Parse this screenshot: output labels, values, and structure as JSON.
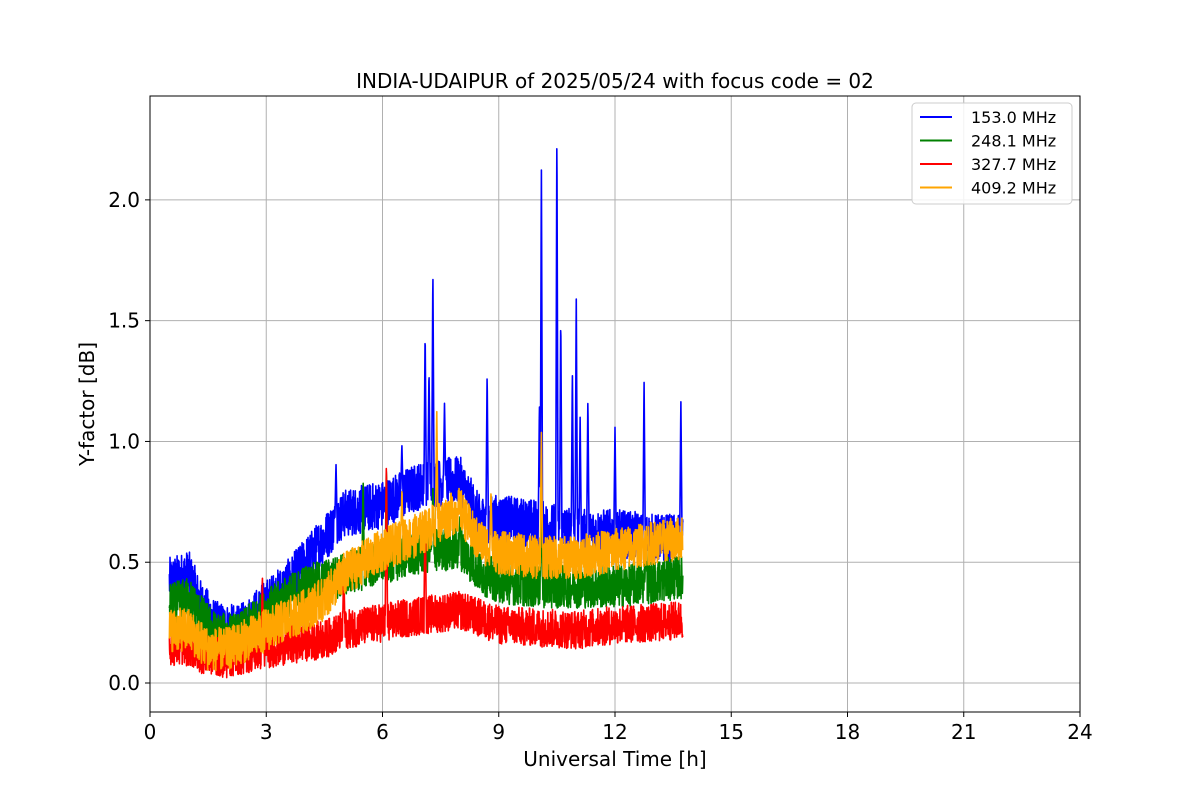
{
  "chart_data": {
    "type": "line",
    "title": "INDIA-UDAIPUR of 2025/05/24 with focus code = 02",
    "xlabel": "Universal Time [h]",
    "ylabel": "Y-factor [dB]",
    "xlim": [
      0,
      24
    ],
    "ylim": [
      -0.12,
      2.43
    ],
    "xticks": [
      0,
      3,
      6,
      9,
      12,
      15,
      18,
      21,
      24
    ],
    "xtick_labels": [
      "0",
      "3",
      "6",
      "9",
      "12",
      "15",
      "18",
      "21",
      "24"
    ],
    "yticks": [
      0.0,
      0.5,
      1.0,
      1.5,
      2.0
    ],
    "ytick_labels": [
      "0.0",
      "0.5",
      "1.0",
      "1.5",
      "2.0"
    ],
    "grid": true,
    "legend_position": "top-right",
    "data_range_hours": [
      0.5,
      13.75
    ],
    "series": [
      {
        "name": "153.0 MHz",
        "color": "#0000ff",
        "noise": 0.1,
        "baseline": [
          [
            0.5,
            0.42
          ],
          [
            1.0,
            0.45
          ],
          [
            1.3,
            0.33
          ],
          [
            1.7,
            0.24
          ],
          [
            2.3,
            0.22
          ],
          [
            3.0,
            0.33
          ],
          [
            3.5,
            0.4
          ],
          [
            4.0,
            0.5
          ],
          [
            4.5,
            0.6
          ],
          [
            5.0,
            0.7
          ],
          [
            6.0,
            0.74
          ],
          [
            7.0,
            0.82
          ],
          [
            8.0,
            0.84
          ],
          [
            8.5,
            0.68
          ],
          [
            9.0,
            0.68
          ],
          [
            10.0,
            0.66
          ],
          [
            11.0,
            0.62
          ],
          [
            12.0,
            0.62
          ],
          [
            13.0,
            0.6
          ],
          [
            13.75,
            0.6
          ]
        ],
        "spikes": [
          [
            7.1,
            1.46
          ],
          [
            7.3,
            1.72
          ],
          [
            7.2,
            1.3
          ],
          [
            7.6,
            1.16
          ],
          [
            8.7,
            1.29
          ],
          [
            10.05,
            1.16
          ],
          [
            10.1,
            2.16
          ],
          [
            10.5,
            2.31
          ],
          [
            10.6,
            1.53
          ],
          [
            10.9,
            1.3
          ],
          [
            11.0,
            1.61
          ],
          [
            11.1,
            1.1
          ],
          [
            11.3,
            1.18
          ],
          [
            12.0,
            1.06
          ],
          [
            12.75,
            1.26
          ],
          [
            13.7,
            1.17
          ],
          [
            6.5,
            0.99
          ],
          [
            4.8,
            0.91
          ]
        ]
      },
      {
        "name": "248.1 MHz",
        "color": "#008000",
        "noise": 0.09,
        "baseline": [
          [
            0.5,
            0.32
          ],
          [
            1.0,
            0.35
          ],
          [
            1.3,
            0.28
          ],
          [
            1.7,
            0.2
          ],
          [
            2.3,
            0.2
          ],
          [
            3.0,
            0.3
          ],
          [
            3.5,
            0.35
          ],
          [
            4.0,
            0.4
          ],
          [
            4.5,
            0.42
          ],
          [
            5.0,
            0.45
          ],
          [
            6.0,
            0.5
          ],
          [
            7.0,
            0.54
          ],
          [
            8.0,
            0.56
          ],
          [
            8.5,
            0.46
          ],
          [
            9.0,
            0.42
          ],
          [
            10.0,
            0.4
          ],
          [
            11.0,
            0.4
          ],
          [
            12.0,
            0.4
          ],
          [
            13.0,
            0.42
          ],
          [
            13.75,
            0.44
          ]
        ],
        "spikes": [
          [
            5.5,
            0.85
          ],
          [
            6.1,
            0.9
          ],
          [
            7.3,
            0.82
          ],
          [
            8.0,
            0.7
          ],
          [
            10.1,
            0.8
          ],
          [
            12.8,
            0.6
          ]
        ]
      },
      {
        "name": "327.7 MHz",
        "color": "#ff0000",
        "noise": 0.08,
        "baseline": [
          [
            0.5,
            0.15
          ],
          [
            1.0,
            0.15
          ],
          [
            1.3,
            0.12
          ],
          [
            2.0,
            0.1
          ],
          [
            3.0,
            0.14
          ],
          [
            4.0,
            0.17
          ],
          [
            4.5,
            0.18
          ],
          [
            5.0,
            0.22
          ],
          [
            6.0,
            0.25
          ],
          [
            7.0,
            0.28
          ],
          [
            8.0,
            0.3
          ],
          [
            9.0,
            0.24
          ],
          [
            10.0,
            0.23
          ],
          [
            11.0,
            0.22
          ],
          [
            12.0,
            0.24
          ],
          [
            13.0,
            0.25
          ],
          [
            13.75,
            0.26
          ]
        ],
        "spikes": [
          [
            2.9,
            0.45
          ],
          [
            6.1,
            0.93
          ],
          [
            7.1,
            0.75
          ],
          [
            5.0,
            0.5
          ]
        ]
      },
      {
        "name": "409.2 MHz",
        "color": "#ffa500",
        "noise": 0.09,
        "baseline": [
          [
            0.5,
            0.22
          ],
          [
            1.0,
            0.22
          ],
          [
            1.5,
            0.14
          ],
          [
            2.0,
            0.14
          ],
          [
            3.0,
            0.22
          ],
          [
            4.0,
            0.3
          ],
          [
            4.5,
            0.35
          ],
          [
            5.0,
            0.45
          ],
          [
            6.0,
            0.55
          ],
          [
            7.0,
            0.62
          ],
          [
            8.0,
            0.72
          ],
          [
            8.4,
            0.6
          ],
          [
            9.0,
            0.54
          ],
          [
            10.0,
            0.52
          ],
          [
            11.0,
            0.52
          ],
          [
            12.0,
            0.55
          ],
          [
            13.0,
            0.58
          ],
          [
            13.75,
            0.6
          ]
        ],
        "spikes": [
          [
            7.4,
            1.14
          ],
          [
            10.1,
            1.05
          ],
          [
            8.8,
            0.8
          ],
          [
            6.5,
            0.8
          ]
        ]
      }
    ]
  }
}
